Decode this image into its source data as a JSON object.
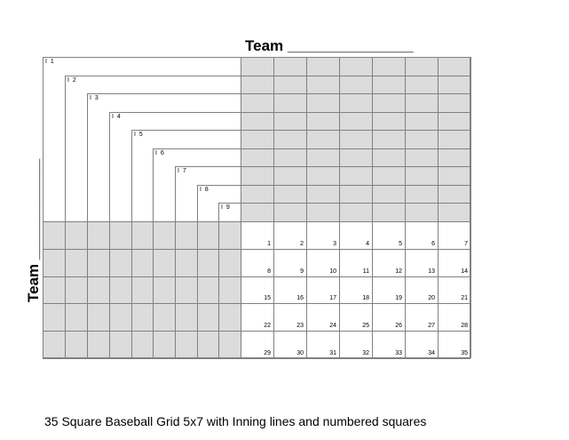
{
  "header": {
    "top_team_label": "Team _______________",
    "side_team_label": "Team ____________"
  },
  "innings": [
    "I 1",
    "I 2",
    "I 3",
    "I 4",
    "I 5",
    "I 6",
    "I 7",
    "I 8",
    "I 9"
  ],
  "squares": {
    "columns": 7,
    "rows": 5,
    "numbers": [
      "1",
      "2",
      "3",
      "4",
      "5",
      "6",
      "7",
      "8",
      "9",
      "10",
      "11",
      "12",
      "13",
      "14",
      "15",
      "16",
      "17",
      "18",
      "19",
      "20",
      "21",
      "22",
      "23",
      "24",
      "25",
      "26",
      "27",
      "28",
      "29",
      "30",
      "31",
      "32",
      "33",
      "34",
      "35"
    ]
  },
  "colors": {
    "shade": "#dcdcdc",
    "line": "#808080",
    "white": "#ffffff"
  },
  "footer": {
    "caption": "35 Square Baseball Grid 5x7 with Inning lines and numbered squares"
  }
}
